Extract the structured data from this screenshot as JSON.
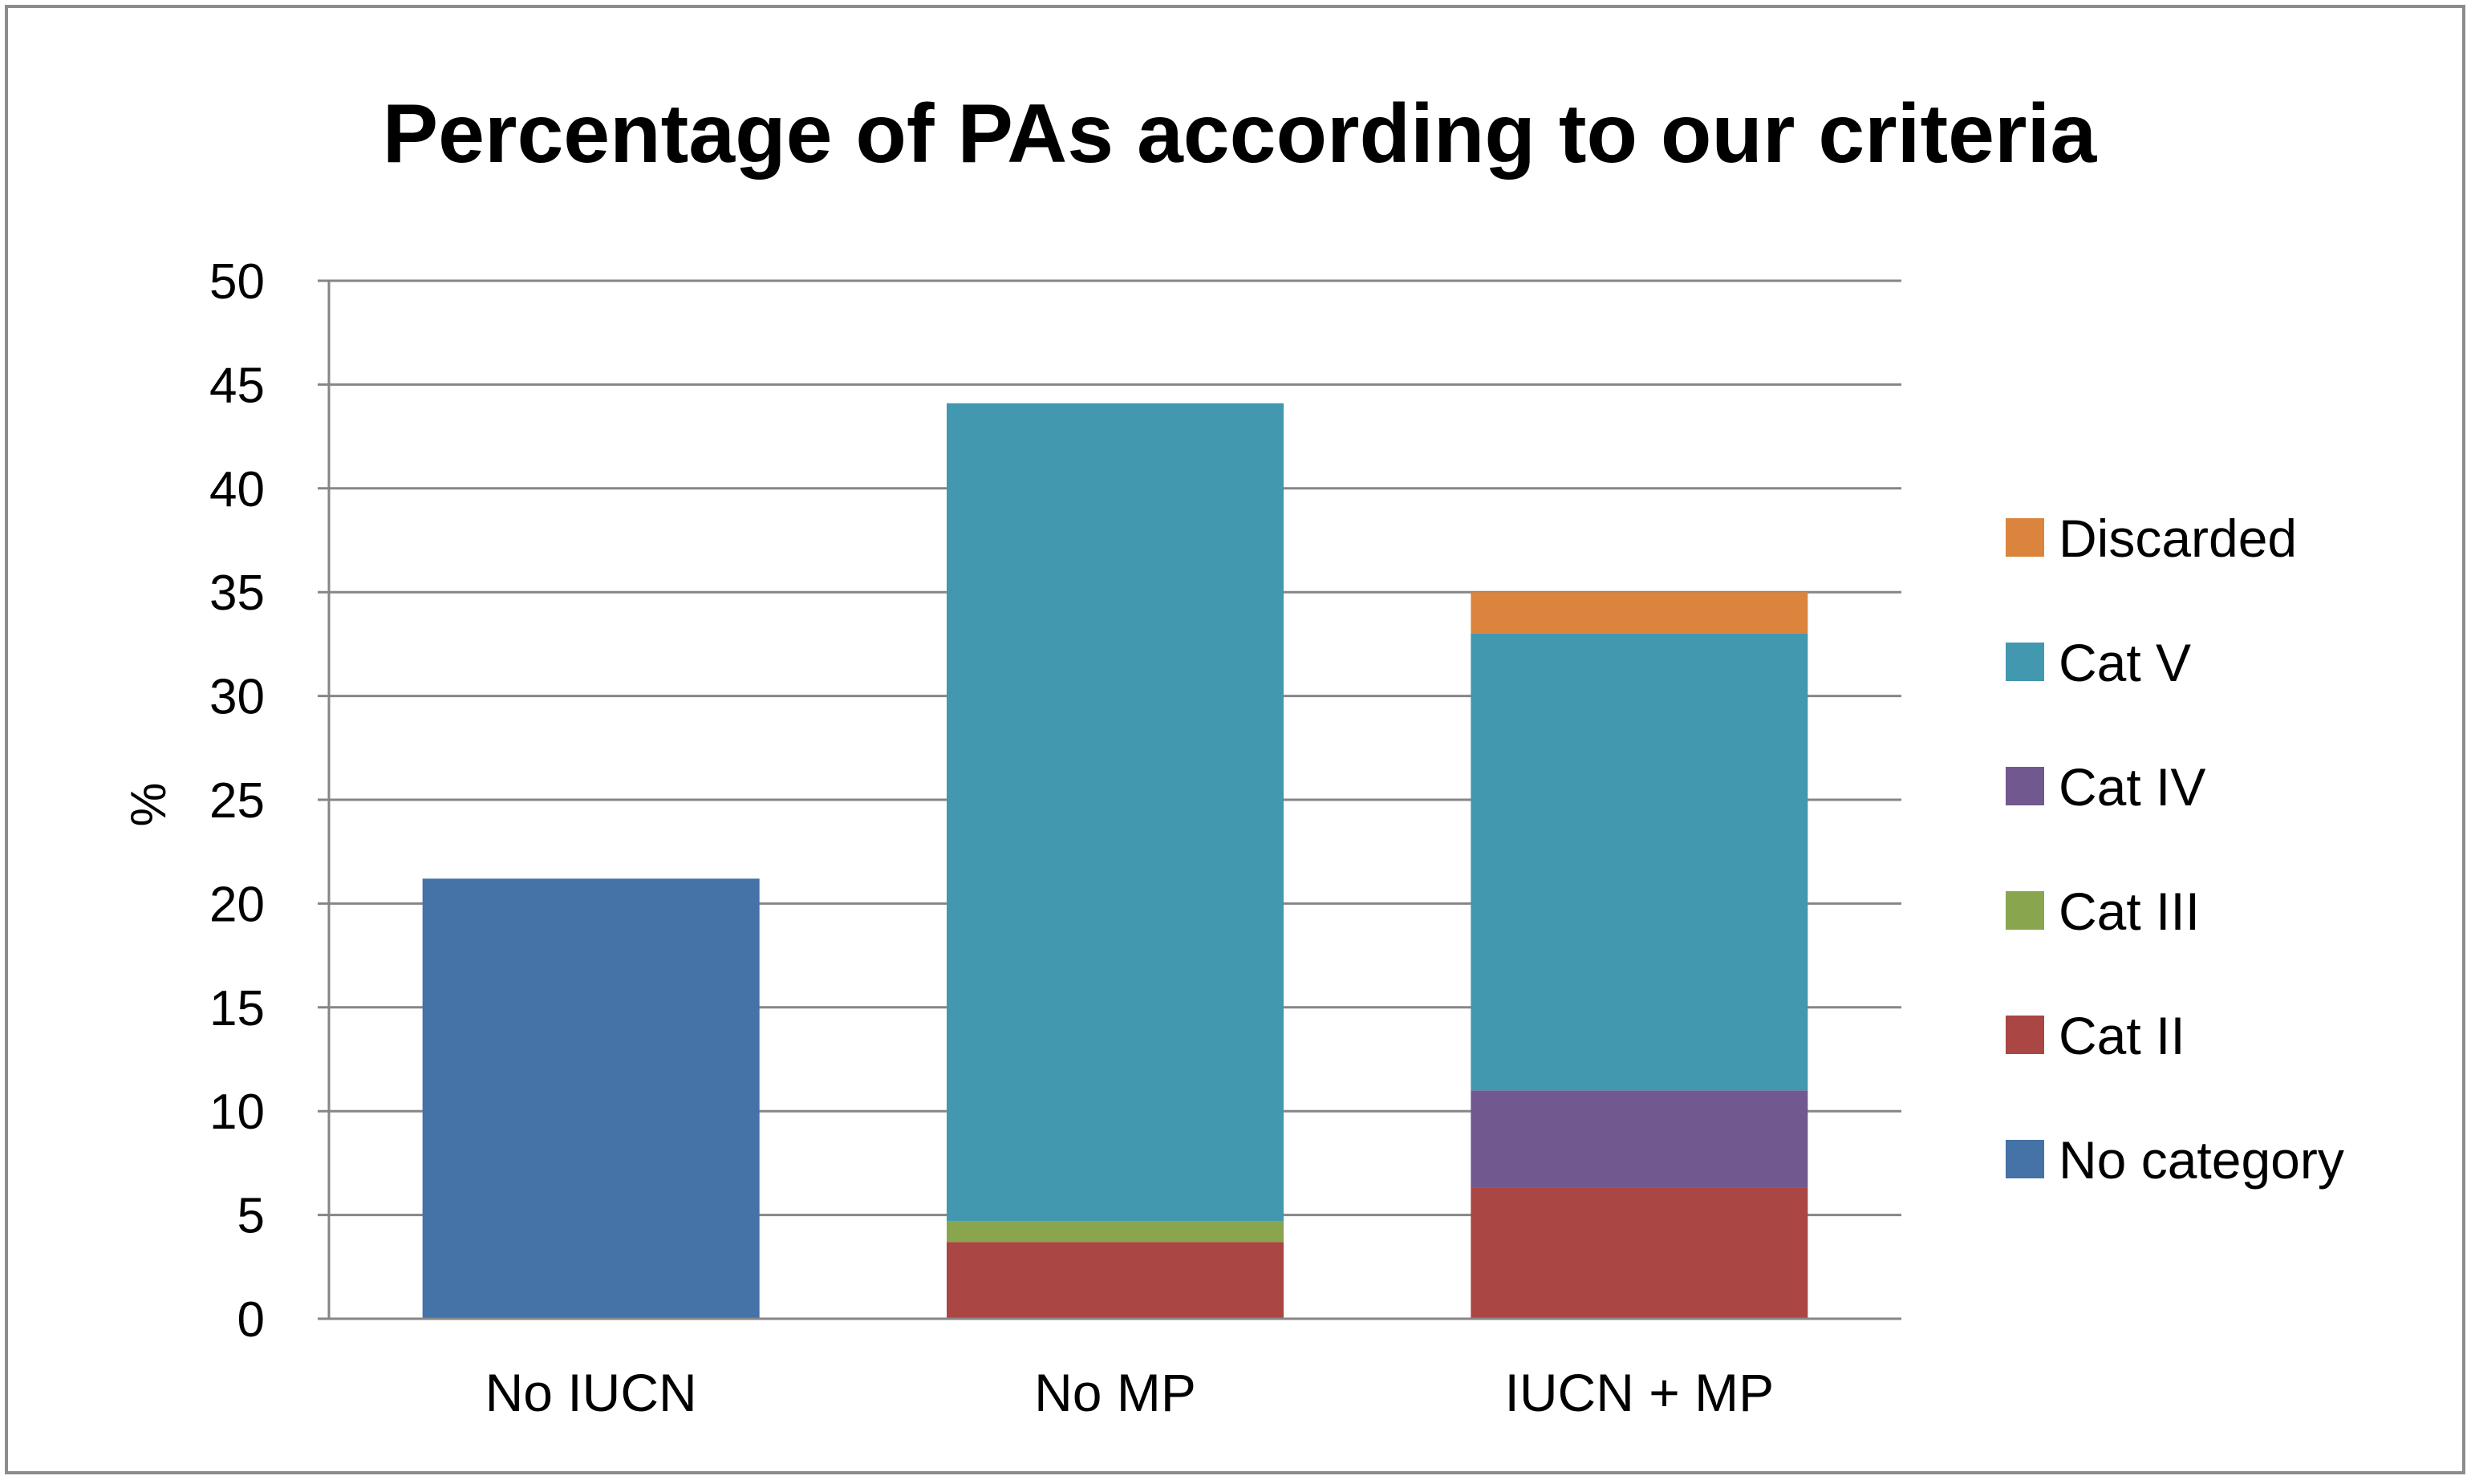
{
  "chart_data": {
    "type": "bar",
    "stacked": true,
    "title": "Percentage of PAs according to our criteria",
    "xlabel": "",
    "ylabel": "%",
    "ylim": [
      0,
      50
    ],
    "yticks": [
      0,
      5,
      10,
      15,
      20,
      25,
      30,
      35,
      40,
      45,
      50
    ],
    "grid": true,
    "legend_position": "right",
    "categories": [
      "No IUCN",
      "No MP",
      "IUCN + MP"
    ],
    "series": [
      {
        "name": "No category",
        "color": "#4572A7",
        "values": [
          21.2,
          0,
          0
        ]
      },
      {
        "name": "Cat II",
        "color": "#AA4643",
        "values": [
          0,
          3.7,
          6.3
        ]
      },
      {
        "name": "Cat III",
        "color": "#89A54E",
        "values": [
          0,
          1.0,
          0
        ]
      },
      {
        "name": "Cat IV",
        "color": "#71588F",
        "values": [
          0,
          0,
          4.7
        ]
      },
      {
        "name": "Cat V",
        "color": "#4198AF",
        "values": [
          0,
          39.4,
          22.0
        ]
      },
      {
        "name": "Discarded",
        "color": "#DB843D",
        "values": [
          0,
          0,
          2.0
        ]
      }
    ],
    "legend_order": [
      "Discarded",
      "Cat V",
      "Cat IV",
      "Cat III",
      "Cat II",
      "No category"
    ]
  }
}
